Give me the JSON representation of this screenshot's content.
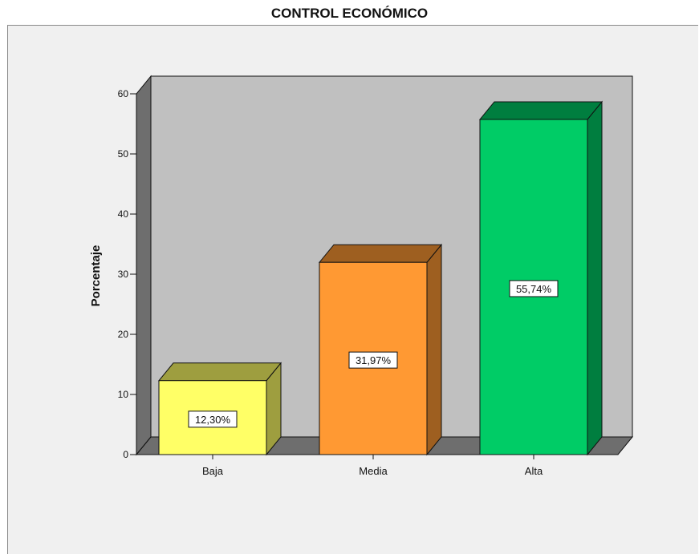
{
  "chart_data": {
    "type": "bar",
    "title": "CONTROL ECONÓMICO",
    "xlabel": "",
    "ylabel": "Porcentaje",
    "ylim": [
      0,
      60
    ],
    "yticks": [
      0,
      10,
      20,
      30,
      40,
      50,
      60
    ],
    "categories": [
      "Baja",
      "Media",
      "Alta"
    ],
    "values": [
      12.3,
      31.97,
      55.74
    ],
    "data_labels": [
      "12,30%",
      "31,97%",
      "55,74%"
    ],
    "colors": [
      "#ffff66",
      "#ff9933",
      "#00cc66"
    ],
    "grid": false,
    "three_d": true
  }
}
